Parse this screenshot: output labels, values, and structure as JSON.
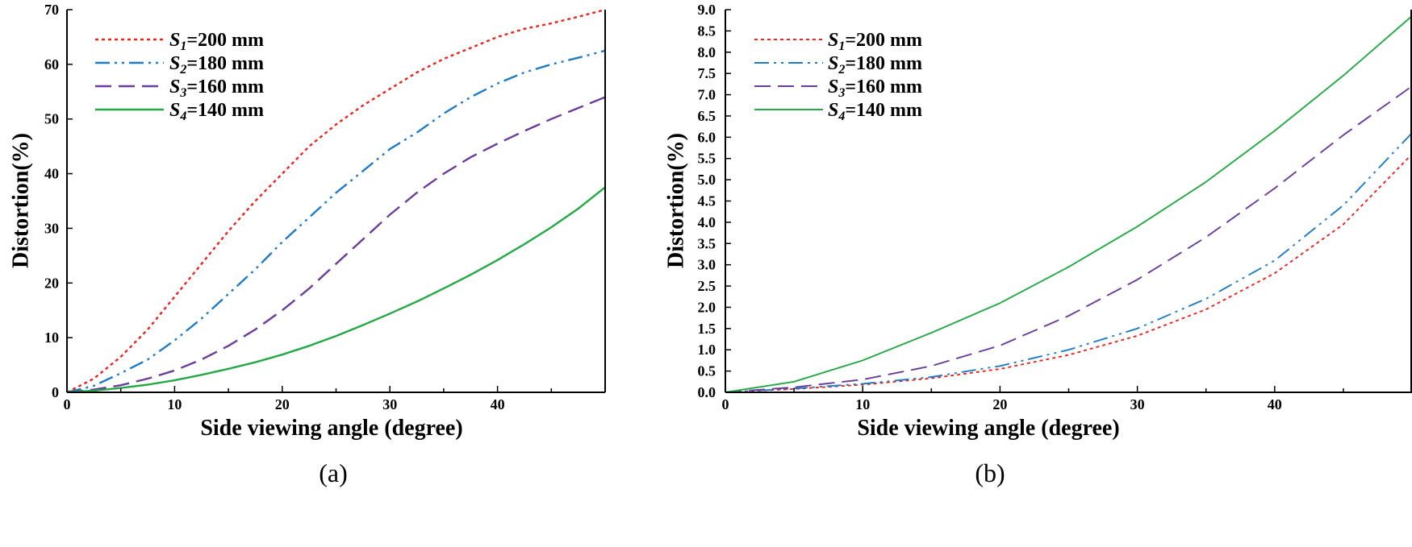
{
  "chart_data": [
    {
      "type": "line",
      "panel_label": "(a)",
      "xlabel": "Side viewing angle (degree)",
      "ylabel": "Distortion(%)",
      "xlim": [
        0,
        50
      ],
      "ylim": [
        0,
        70
      ],
      "xticks": [
        0,
        10,
        20,
        30,
        40
      ],
      "yticks": [
        0,
        10,
        20,
        30,
        40,
        50,
        60,
        70
      ],
      "ytick_decimals": 0,
      "legend_position": "top-left",
      "series": [
        {
          "name": "S1=200 mm",
          "sym": "S",
          "sub": "1",
          "rest": "=200 mm",
          "color": "#e8251f",
          "style": "dotted",
          "x": [
            0,
            2.5,
            5,
            7.5,
            10,
            12.5,
            15,
            17.5,
            20,
            22.5,
            25,
            27.5,
            30,
            32.5,
            35,
            37.5,
            40,
            42.5,
            45,
            47.5,
            50
          ],
          "y": [
            0,
            2.5,
            6.5,
            11.5,
            17.5,
            23.5,
            29.5,
            35,
            40,
            45,
            49,
            52.5,
            55.5,
            58.5,
            61,
            63,
            65,
            66.5,
            67.5,
            68.7,
            70
          ]
        },
        {
          "name": "S2=180 mm",
          "sym": "S",
          "sub": "2",
          "rest": "=180 mm",
          "color": "#1f7bc4",
          "style": "dashdotdot",
          "x": [
            0,
            2.5,
            5,
            7.5,
            10,
            12.5,
            15,
            17.5,
            20,
            22.5,
            25,
            27.5,
            30,
            32.5,
            35,
            37.5,
            40,
            42.5,
            45,
            47.5,
            50
          ],
          "y": [
            0,
            1.2,
            3.5,
            6,
            9.5,
            13.5,
            18,
            22.5,
            27.5,
            32,
            36.5,
            40.5,
            44.5,
            47.5,
            51,
            54,
            56.5,
            58.5,
            60,
            61.2,
            62.5
          ]
        },
        {
          "name": "S3=160 mm",
          "sym": "S",
          "sub": "3",
          "rest": "=160 mm",
          "color": "#6a3d9a",
          "style": "dashed",
          "x": [
            0,
            2.5,
            5,
            7.5,
            10,
            12.5,
            15,
            17.5,
            20,
            22.5,
            25,
            27.5,
            30,
            32.5,
            35,
            37.5,
            40,
            42.5,
            45,
            47.5,
            50
          ],
          "y": [
            0,
            0.5,
            1.3,
            2.5,
            4,
            6,
            8.5,
            11.5,
            15,
            19,
            23.5,
            28,
            32.5,
            36.5,
            40,
            43,
            45.5,
            47.8,
            50,
            52,
            54
          ]
        },
        {
          "name": "S4=140 mm",
          "sym": "S",
          "sub": "4",
          "rest": "=140 mm",
          "color": "#24a845",
          "style": "solid",
          "x": [
            0,
            2.5,
            5,
            7.5,
            10,
            12.5,
            15,
            17.5,
            20,
            22.5,
            25,
            27.5,
            30,
            32.5,
            35,
            37.5,
            40,
            42.5,
            45,
            47.5,
            50
          ],
          "y": [
            0,
            0.3,
            0.8,
            1.4,
            2.2,
            3.2,
            4.3,
            5.5,
            6.9,
            8.5,
            10.3,
            12.3,
            14.4,
            16.6,
            19,
            21.5,
            24.2,
            27.1,
            30.2,
            33.6,
            37.5
          ]
        }
      ]
    },
    {
      "type": "line",
      "panel_label": "(b)",
      "xlabel": "Side viewing angle (degree)",
      "ylabel": "Distortion(%)",
      "xlim": [
        0,
        50
      ],
      "ylim": [
        0,
        9
      ],
      "xticks": [
        0,
        10,
        20,
        30,
        40
      ],
      "yticks": [
        0,
        0.5,
        1.0,
        1.5,
        2.0,
        2.5,
        3.0,
        3.5,
        4.0,
        4.5,
        5.0,
        5.5,
        6.0,
        6.5,
        7.0,
        7.5,
        8.0,
        8.5,
        9.0
      ],
      "ytick_decimals": 1,
      "legend_position": "top-left",
      "series": [
        {
          "name": "S1=200 mm",
          "sym": "S",
          "sub": "1",
          "rest": "=200 mm",
          "color": "#e8251f",
          "style": "dotted",
          "x": [
            0,
            5,
            10,
            15,
            20,
            25,
            30,
            35,
            40,
            45,
            50
          ],
          "y": [
            0,
            0.08,
            0.18,
            0.33,
            0.55,
            0.88,
            1.33,
            1.95,
            2.8,
            3.95,
            5.6
          ]
        },
        {
          "name": "S2=180 mm",
          "sym": "S",
          "sub": "2",
          "rest": "=180 mm",
          "color": "#1f7bc4",
          "style": "dashdotdot",
          "x": [
            0,
            5,
            10,
            15,
            20,
            25,
            30,
            35,
            40,
            45,
            50
          ],
          "y": [
            0,
            0.09,
            0.2,
            0.36,
            0.62,
            1.0,
            1.5,
            2.2,
            3.1,
            4.4,
            6.1
          ]
        },
        {
          "name": "S3=160 mm",
          "sym": "S",
          "sub": "3",
          "rest": "=160 mm",
          "color": "#6a3d9a",
          "style": "dashed",
          "x": [
            0,
            5,
            10,
            15,
            20,
            25,
            30,
            35,
            40,
            45,
            50
          ],
          "y": [
            0,
            0.12,
            0.3,
            0.62,
            1.1,
            1.8,
            2.65,
            3.65,
            4.8,
            6.05,
            7.2
          ]
        },
        {
          "name": "S4=140 mm",
          "sym": "S",
          "sub": "4",
          "rest": "=140 mm",
          "color": "#24a845",
          "style": "solid",
          "x": [
            0,
            5,
            10,
            15,
            20,
            25,
            30,
            35,
            40,
            45,
            50
          ],
          "y": [
            0,
            0.25,
            0.75,
            1.4,
            2.1,
            2.95,
            3.9,
            4.95,
            6.15,
            7.45,
            8.85
          ]
        }
      ]
    }
  ]
}
